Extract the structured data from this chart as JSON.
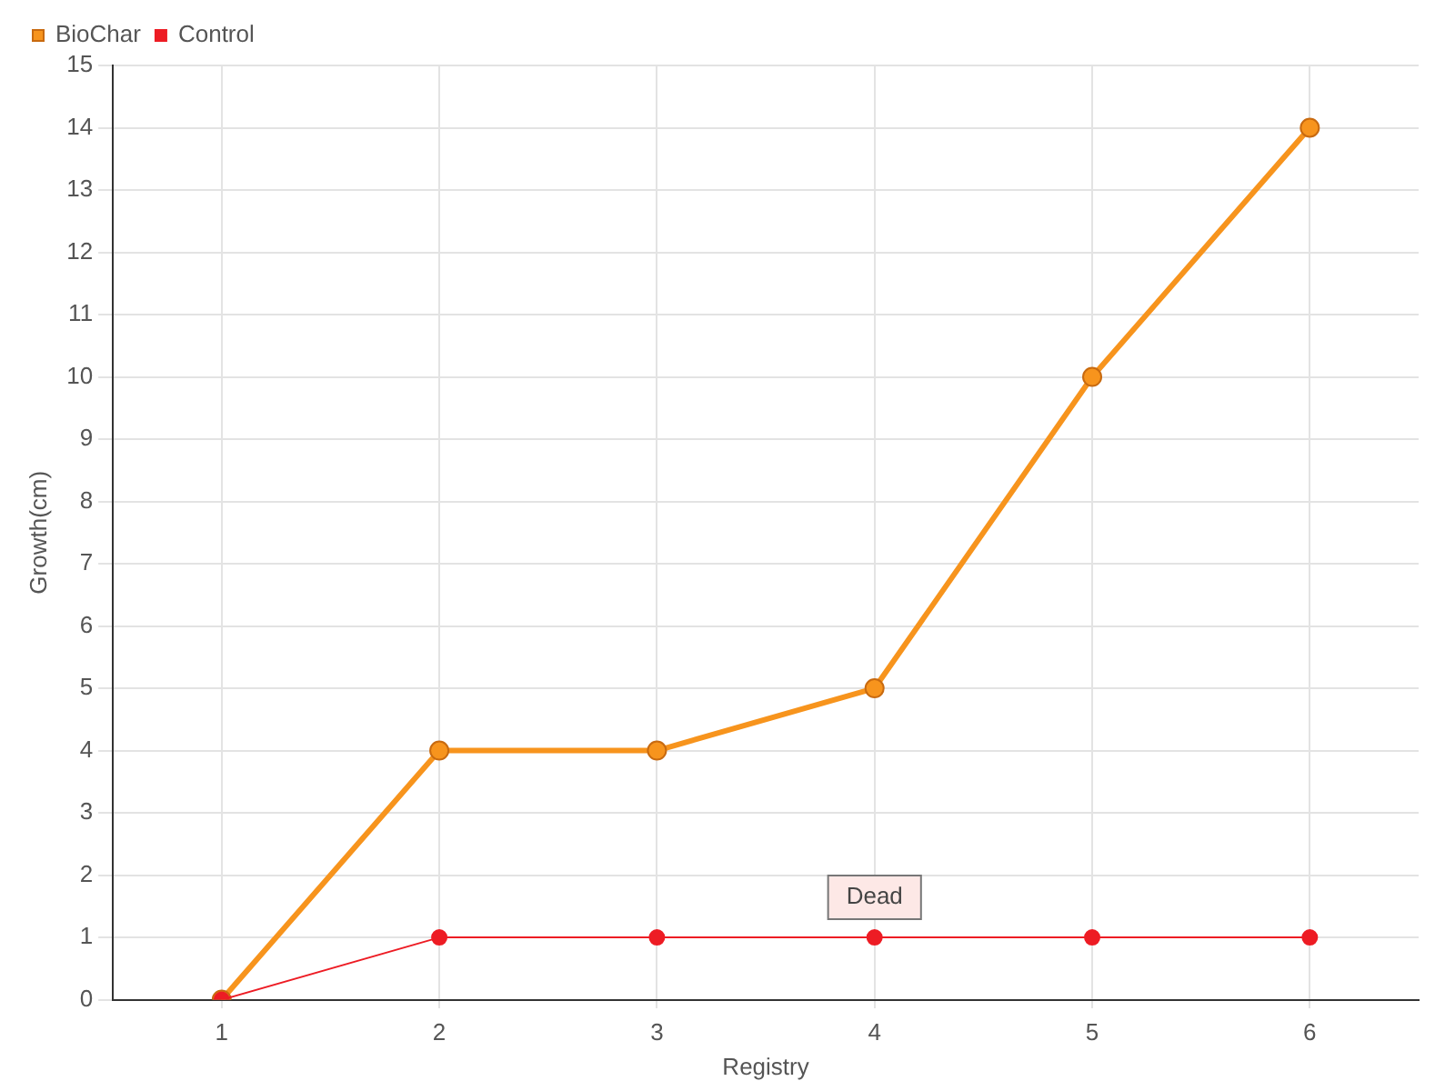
{
  "chart_data": {
    "type": "line",
    "xlabel": "Registry",
    "ylabel": "Growth(cm)",
    "categories": [
      "1",
      "2",
      "3",
      "4",
      "5",
      "6"
    ],
    "series": [
      {
        "name": "BioChar",
        "color": "#f7941d",
        "values": [
          0,
          4,
          4,
          5,
          10,
          14
        ]
      },
      {
        "name": "Control",
        "color": "#ed1c24",
        "values": [
          0,
          1,
          1,
          1,
          1,
          1
        ]
      }
    ],
    "ylim": [
      0,
      15
    ],
    "yticks": [
      0,
      1,
      2,
      3,
      4,
      5,
      6,
      7,
      8,
      9,
      10,
      11,
      12,
      13,
      14,
      15
    ],
    "grid": true,
    "legend": "top left",
    "marker": "circle",
    "line_style": "solid",
    "annotations": [
      {
        "text": "Dead",
        "x": "4",
        "y": 1
      }
    ]
  }
}
